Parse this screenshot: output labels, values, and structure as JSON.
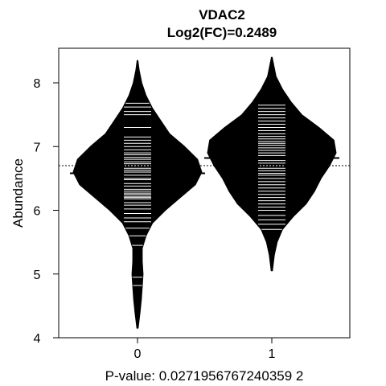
{
  "chart_data": {
    "type": "beanplot",
    "title": "VDAC2",
    "subtitle": "Log2(FC)=0.2489",
    "xlabel": "P-value: 0.0271956767240359 2",
    "ylabel": "Abundance",
    "categories": [
      "0",
      "1"
    ],
    "ylim": [
      4,
      8.4
    ],
    "yticks": [
      "4",
      "5",
      "6",
      "7",
      "8"
    ],
    "overall_mean": 6.7,
    "groups": [
      {
        "name": "0",
        "mean": 6.58,
        "min": 4.15,
        "max": 8.35,
        "density": [
          [
            4.15,
            0.003
          ],
          [
            4.4,
            0.012
          ],
          [
            4.6,
            0.018
          ],
          [
            4.8,
            0.022
          ],
          [
            5.0,
            0.026
          ],
          [
            5.2,
            0.022
          ],
          [
            5.4,
            0.022
          ],
          [
            5.6,
            0.04
          ],
          [
            5.8,
            0.07
          ],
          [
            6.0,
            0.13
          ],
          [
            6.2,
            0.2
          ],
          [
            6.4,
            0.27
          ],
          [
            6.6,
            0.3
          ],
          [
            6.8,
            0.28
          ],
          [
            7.0,
            0.22
          ],
          [
            7.2,
            0.15
          ],
          [
            7.4,
            0.11
          ],
          [
            7.6,
            0.07
          ],
          [
            7.8,
            0.04
          ],
          [
            8.0,
            0.02
          ],
          [
            8.2,
            0.008
          ],
          [
            8.35,
            0.002
          ]
        ],
        "points": [
          4.82,
          4.95,
          5.45,
          5.6,
          5.72,
          5.82,
          5.88,
          5.95,
          6.02,
          6.08,
          6.12,
          6.18,
          6.2,
          6.22,
          6.25,
          6.27,
          6.3,
          6.33,
          6.38,
          6.42,
          6.48,
          6.5,
          6.55,
          6.58,
          6.6,
          6.63,
          6.66,
          6.7,
          6.73,
          6.76,
          6.8,
          6.83,
          6.87,
          6.9,
          6.95,
          7.0,
          7.05,
          7.1,
          7.15,
          7.3,
          7.5,
          7.55,
          7.62,
          7.68
        ]
      },
      {
        "name": "1",
        "mean": 6.82,
        "min": 5.05,
        "max": 8.4,
        "density": [
          [
            5.05,
            0.003
          ],
          [
            5.3,
            0.012
          ],
          [
            5.5,
            0.025
          ],
          [
            5.7,
            0.05
          ],
          [
            5.9,
            0.1
          ],
          [
            6.1,
            0.16
          ],
          [
            6.3,
            0.2
          ],
          [
            6.5,
            0.23
          ],
          [
            6.7,
            0.27
          ],
          [
            6.9,
            0.3
          ],
          [
            7.1,
            0.29
          ],
          [
            7.3,
            0.22
          ],
          [
            7.5,
            0.14
          ],
          [
            7.7,
            0.09
          ],
          [
            7.9,
            0.05
          ],
          [
            8.1,
            0.02
          ],
          [
            8.3,
            0.008
          ],
          [
            8.4,
            0.002
          ]
        ],
        "points": [
          5.7,
          5.78,
          5.85,
          5.92,
          6.0,
          6.05,
          6.1,
          6.15,
          6.2,
          6.25,
          6.3,
          6.35,
          6.4,
          6.45,
          6.5,
          6.55,
          6.58,
          6.62,
          6.66,
          6.7,
          6.74,
          6.78,
          6.82,
          6.86,
          6.9,
          6.94,
          6.98,
          7.02,
          7.05,
          7.08,
          7.12,
          7.16,
          7.2,
          7.25,
          7.3,
          7.35,
          7.4,
          7.45,
          7.5,
          7.55,
          7.6,
          7.65
        ]
      }
    ]
  }
}
